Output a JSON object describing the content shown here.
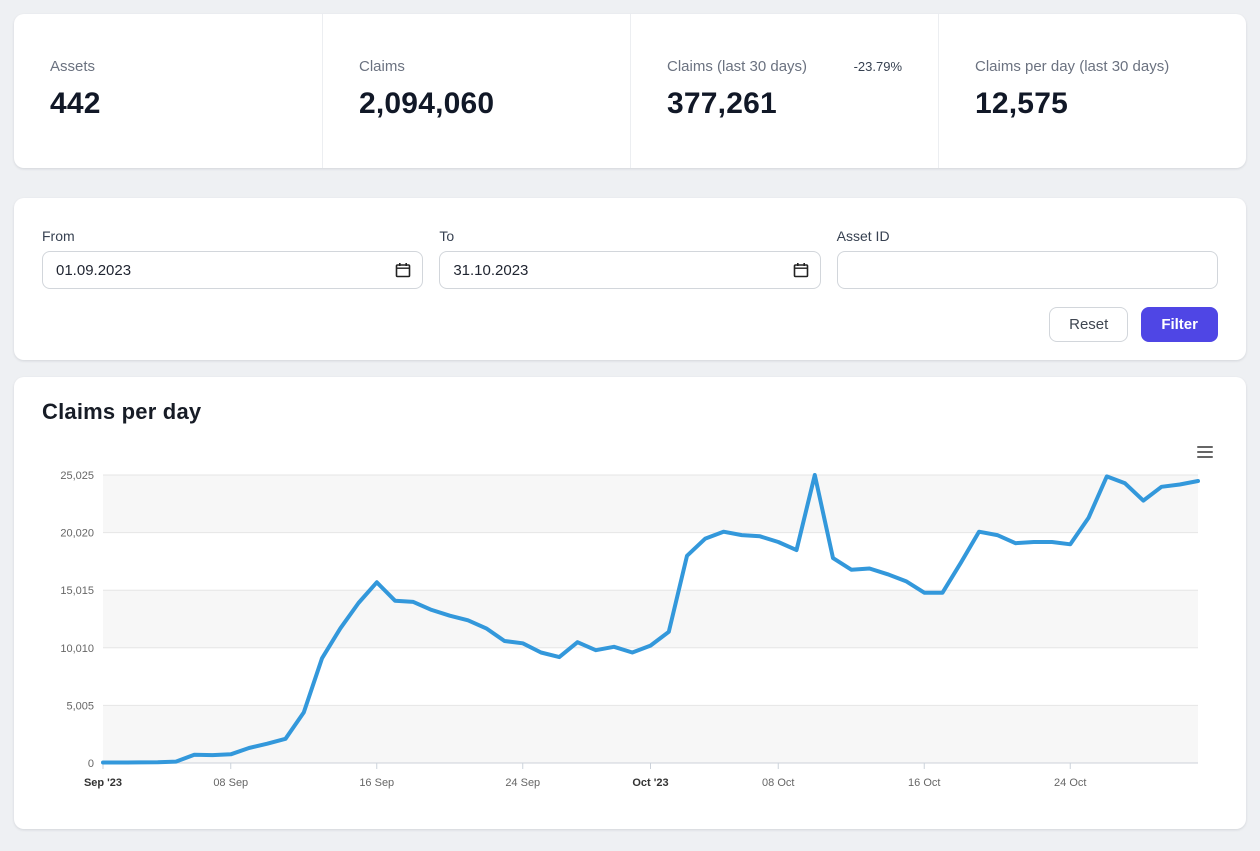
{
  "stats": [
    {
      "label": "Assets",
      "value": "442"
    },
    {
      "label": "Claims",
      "value": "2,094,060"
    },
    {
      "label": "Claims (last 30 days)",
      "value": "377,261",
      "delta": "-23.79%"
    },
    {
      "label": "Claims per day (last 30 days)",
      "value": "12,575"
    }
  ],
  "filter": {
    "from": {
      "label": "From",
      "value": "01.09.2023"
    },
    "to": {
      "label": "To",
      "value": "31.10.2023"
    },
    "asset_id": {
      "label": "Asset ID",
      "value": ""
    },
    "reset_label": "Reset",
    "filter_label": "Filter"
  },
  "chart_data": {
    "type": "line",
    "title": "Claims per day",
    "xlabel": "",
    "ylabel": "",
    "x_start_date": "2023-09-01",
    "x_end_date": "2023-10-31",
    "x_interval": "daily",
    "values": [
      40,
      45,
      50,
      60,
      120,
      720,
      690,
      760,
      1300,
      1680,
      2100,
      4400,
      9100,
      11700,
      13900,
      15700,
      14100,
      14000,
      13300,
      12800,
      12400,
      11700,
      10600,
      10400,
      9600,
      9200,
      10500,
      9800,
      10100,
      9600,
      10200,
      11400,
      18000,
      19500,
      20100,
      19800,
      19700,
      19200,
      18500,
      25025,
      17800,
      16800,
      16900,
      16400,
      15800,
      14800,
      14800,
      17400,
      20100,
      19800,
      19100,
      19200,
      19200,
      19000,
      21300,
      24900,
      24300,
      22800,
      24000,
      24200,
      24500
    ],
    "ylim": [
      0,
      25025
    ],
    "yticks": [
      0,
      5005,
      10010,
      15015,
      20020,
      25025
    ],
    "ytick_labels": [
      "0",
      "5,005",
      "10,010",
      "15,015",
      "20,020",
      "25,025"
    ],
    "xticks": [
      {
        "i": 0,
        "label": "Sep '23",
        "emphasis": true
      },
      {
        "i": 7,
        "label": "08 Sep",
        "emphasis": false
      },
      {
        "i": 15,
        "label": "16 Sep",
        "emphasis": false
      },
      {
        "i": 23,
        "label": "24 Sep",
        "emphasis": false
      },
      {
        "i": 30,
        "label": "Oct '23",
        "emphasis": true
      },
      {
        "i": 37,
        "label": "08 Oct",
        "emphasis": false
      },
      {
        "i": 45,
        "label": "16 Oct",
        "emphasis": false
      },
      {
        "i": 53,
        "label": "24 Oct",
        "emphasis": false
      }
    ],
    "grid": true,
    "legend": "none",
    "line_color": "#3398db",
    "band_color": "#f7f7f7",
    "grid_color": "#e6e6e6",
    "axis_color": "#ccd2da"
  },
  "accent_color": "#4f46e5"
}
